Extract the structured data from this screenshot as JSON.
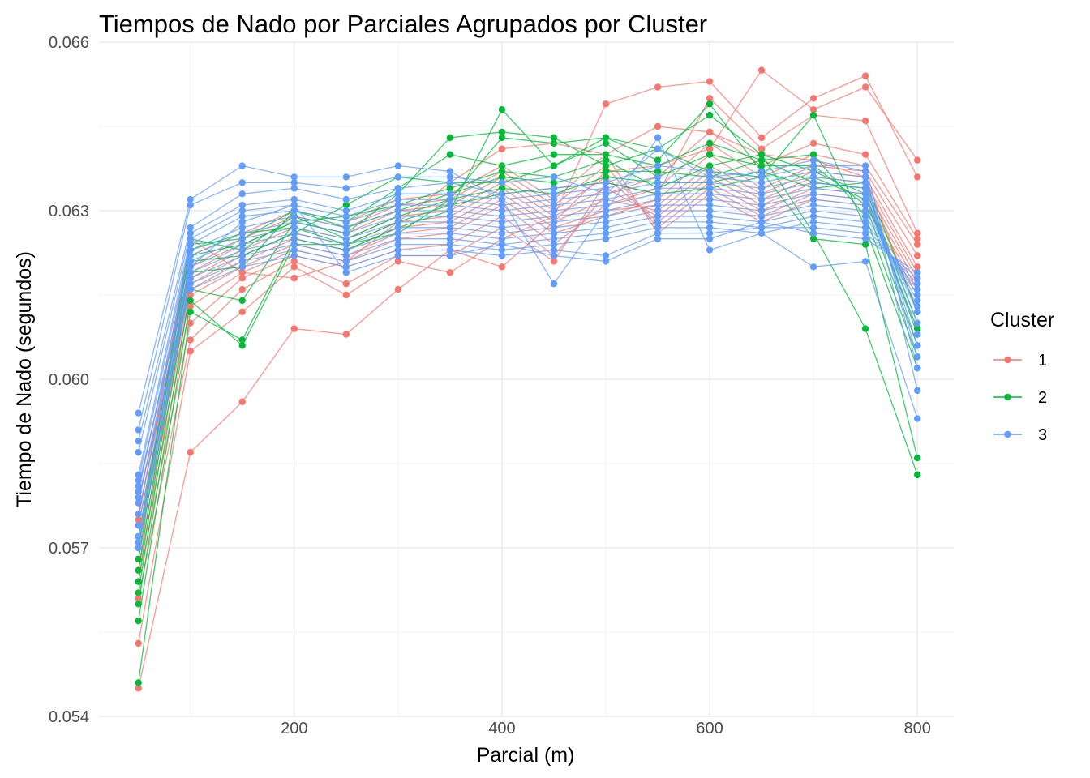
{
  "chart_data": {
    "type": "line",
    "title": "Tiempos de Nado por Parciales Agrupados por Cluster",
    "xlabel": "Parcial (m)",
    "ylabel": "Tiempo de Nado (segundos)",
    "x": [
      50,
      100,
      150,
      200,
      250,
      300,
      350,
      400,
      450,
      500,
      550,
      600,
      650,
      700,
      750,
      800
    ],
    "xlim": [
      12,
      835
    ],
    "ylim": [
      0.054,
      0.066
    ],
    "xticks": [
      200,
      400,
      600,
      800
    ],
    "xtick_labels": [
      "200",
      "400",
      "600",
      "800"
    ],
    "yticks": [
      0.054,
      0.057,
      0.06,
      0.063,
      0.066
    ],
    "ytick_labels": [
      "0.054",
      "0.057",
      "0.060",
      "0.063",
      "0.066"
    ],
    "grid": true,
    "legend": {
      "title": "Cluster",
      "position": "right"
    },
    "series_groups": [
      {
        "name": "1",
        "color": "#F8766D",
        "lines": [
          [
            0.0545,
            0.0587,
            0.0596,
            0.0609,
            0.0608,
            0.0616,
            0.0623,
            0.062,
            0.0628,
            0.0637,
            0.0638,
            0.0641,
            0.0655,
            0.0648,
            0.0652,
            0.0639
          ],
          [
            0.0553,
            0.0605,
            0.0612,
            0.062,
            0.0615,
            0.0621,
            0.0619,
            0.0625,
            0.0629,
            0.0649,
            0.0652,
            0.0653,
            0.0643,
            0.065,
            0.0654,
            0.0636
          ],
          [
            0.0561,
            0.0607,
            0.0616,
            0.0621,
            0.0617,
            0.0622,
            0.0622,
            0.0627,
            0.0621,
            0.0635,
            0.0633,
            0.065,
            0.0641,
            0.0647,
            0.0646,
            0.0626
          ],
          [
            0.0564,
            0.061,
            0.0618,
            0.0622,
            0.062,
            0.0623,
            0.0624,
            0.0629,
            0.0622,
            0.0633,
            0.0636,
            0.0644,
            0.0638,
            0.0642,
            0.064,
            0.0625
          ],
          [
            0.0566,
            0.0613,
            0.0619,
            0.0623,
            0.0621,
            0.0625,
            0.0626,
            0.0631,
            0.0624,
            0.0631,
            0.0634,
            0.0642,
            0.0636,
            0.064,
            0.0638,
            0.0624
          ],
          [
            0.0568,
            0.0615,
            0.062,
            0.0624,
            0.0622,
            0.0626,
            0.0627,
            0.0632,
            0.0626,
            0.0629,
            0.0632,
            0.064,
            0.0634,
            0.0638,
            0.0637,
            0.0622
          ],
          [
            0.057,
            0.0616,
            0.0621,
            0.0625,
            0.0623,
            0.0627,
            0.0628,
            0.0633,
            0.0627,
            0.063,
            0.0631,
            0.0638,
            0.0633,
            0.0637,
            0.0636,
            0.062
          ],
          [
            0.0572,
            0.0617,
            0.0622,
            0.0626,
            0.0624,
            0.0628,
            0.0629,
            0.0634,
            0.0628,
            0.0632,
            0.063,
            0.0637,
            0.0632,
            0.0636,
            0.0635,
            0.0619
          ],
          [
            0.0574,
            0.0618,
            0.0623,
            0.0627,
            0.0625,
            0.0629,
            0.063,
            0.0635,
            0.0629,
            0.0634,
            0.0629,
            0.0636,
            0.0631,
            0.0635,
            0.0634,
            0.0618
          ],
          [
            0.0576,
            0.0619,
            0.0624,
            0.0628,
            0.0626,
            0.063,
            0.0631,
            0.0636,
            0.063,
            0.0636,
            0.0628,
            0.0635,
            0.063,
            0.0634,
            0.0633,
            0.0617
          ],
          [
            0.0578,
            0.062,
            0.0625,
            0.0629,
            0.0627,
            0.0631,
            0.0632,
            0.0637,
            0.0631,
            0.0638,
            0.0627,
            0.0634,
            0.0629,
            0.0633,
            0.0632,
            0.0616
          ],
          [
            0.058,
            0.0622,
            0.0626,
            0.063,
            0.0628,
            0.0632,
            0.0633,
            0.0638,
            0.0632,
            0.064,
            0.0626,
            0.0633,
            0.0628,
            0.0632,
            0.0631,
            0.0615
          ],
          [
            0.0575,
            0.0625,
            0.0619,
            0.0618,
            0.0621,
            0.0628,
            0.0635,
            0.0641,
            0.0642,
            0.064,
            0.0645,
            0.0644,
            0.064,
            0.0639,
            0.0636,
            0.0612
          ]
        ]
      },
      {
        "name": "2",
        "color": "#00BA38",
        "lines": [
          [
            0.0546,
            0.0612,
            0.0607,
            0.0625,
            0.0623,
            0.0627,
            0.063,
            0.0648,
            0.0638,
            0.0643,
            0.0641,
            0.0647,
            0.064,
            0.0626,
            0.0609,
            0.0583
          ],
          [
            0.0557,
            0.0614,
            0.0606,
            0.0624,
            0.0624,
            0.0626,
            0.0632,
            0.0643,
            0.0642,
            0.0643,
            0.0639,
            0.0649,
            0.0637,
            0.0625,
            0.0624,
            0.0586
          ],
          [
            0.056,
            0.0616,
            0.0614,
            0.0628,
            0.0626,
            0.0633,
            0.0643,
            0.0644,
            0.0643,
            0.0638,
            0.0641,
            0.0637,
            0.0636,
            0.0647,
            0.0627,
            0.0602
          ],
          [
            0.0562,
            0.0619,
            0.062,
            0.063,
            0.0628,
            0.0634,
            0.064,
            0.0638,
            0.064,
            0.064,
            0.0638,
            0.0642,
            0.0639,
            0.064,
            0.0629,
            0.0604
          ],
          [
            0.0564,
            0.0621,
            0.0622,
            0.0626,
            0.0631,
            0.0636,
            0.0635,
            0.0635,
            0.0638,
            0.0642,
            0.0636,
            0.064,
            0.0638,
            0.0638,
            0.0631,
            0.0606
          ],
          [
            0.0566,
            0.0622,
            0.0624,
            0.0628,
            0.0629,
            0.0631,
            0.0634,
            0.0637,
            0.0636,
            0.0639,
            0.0634,
            0.0638,
            0.064,
            0.0637,
            0.0633,
            0.0608
          ],
          [
            0.0568,
            0.0624,
            0.0625,
            0.063,
            0.0627,
            0.063,
            0.0633,
            0.0636,
            0.0635,
            0.0637,
            0.0637,
            0.0636,
            0.0639,
            0.0635,
            0.0634,
            0.061
          ],
          [
            0.057,
            0.0625,
            0.0623,
            0.0629,
            0.0625,
            0.0629,
            0.0632,
            0.0634,
            0.0633,
            0.0636,
            0.0635,
            0.0635,
            0.0637,
            0.0634,
            0.0635,
            0.0612
          ],
          [
            0.0572,
            0.0623,
            0.0626,
            0.0627,
            0.0624,
            0.0628,
            0.0631,
            0.0633,
            0.0634,
            0.0635,
            0.0633,
            0.0634,
            0.0636,
            0.0636,
            0.0632,
            0.0609
          ]
        ]
      },
      {
        "name": "3",
        "color": "#619CFF",
        "lines": [
          [
            0.0594,
            0.0632,
            0.0638,
            0.0636,
            0.0636,
            0.0638,
            0.0637,
            0.0632,
            0.0617,
            0.063,
            0.0643,
            0.0623,
            0.0626,
            0.062,
            0.0621,
            0.0593
          ],
          [
            0.0591,
            0.0631,
            0.0635,
            0.0635,
            0.0634,
            0.0636,
            0.0636,
            0.0635,
            0.0636,
            0.0633,
            0.0641,
            0.0636,
            0.0637,
            0.0639,
            0.0637,
            0.0598
          ],
          [
            0.0589,
            0.0627,
            0.0633,
            0.0634,
            0.0632,
            0.0634,
            0.0635,
            0.0633,
            0.0634,
            0.0635,
            0.0638,
            0.0637,
            0.0636,
            0.0638,
            0.0638,
            0.0602
          ],
          [
            0.0587,
            0.0626,
            0.0631,
            0.0632,
            0.063,
            0.0633,
            0.0633,
            0.0632,
            0.0633,
            0.0634,
            0.0636,
            0.0636,
            0.0635,
            0.0637,
            0.0636,
            0.0604
          ],
          [
            0.0583,
            0.0625,
            0.063,
            0.0631,
            0.0629,
            0.0632,
            0.0632,
            0.0631,
            0.0632,
            0.0633,
            0.0635,
            0.0635,
            0.0634,
            0.0636,
            0.0635,
            0.0606
          ],
          [
            0.0582,
            0.0624,
            0.0629,
            0.063,
            0.0628,
            0.0631,
            0.0631,
            0.063,
            0.0631,
            0.0632,
            0.0634,
            0.0634,
            0.0633,
            0.0635,
            0.0634,
            0.0608
          ],
          [
            0.058,
            0.0623,
            0.0627,
            0.0629,
            0.0627,
            0.063,
            0.063,
            0.0629,
            0.063,
            0.0631,
            0.0633,
            0.0633,
            0.0632,
            0.0634,
            0.0633,
            0.061
          ],
          [
            0.0578,
            0.0622,
            0.0626,
            0.0628,
            0.0626,
            0.0629,
            0.0629,
            0.0628,
            0.0629,
            0.063,
            0.0632,
            0.0632,
            0.0631,
            0.0633,
            0.0632,
            0.0612
          ],
          [
            0.0576,
            0.0621,
            0.0625,
            0.0627,
            0.0625,
            0.0628,
            0.0628,
            0.0627,
            0.0628,
            0.0629,
            0.0631,
            0.0631,
            0.063,
            0.0632,
            0.0631,
            0.0613
          ],
          [
            0.0574,
            0.062,
            0.0624,
            0.0626,
            0.0624,
            0.0627,
            0.0627,
            0.0626,
            0.0627,
            0.0628,
            0.063,
            0.063,
            0.0629,
            0.0631,
            0.063,
            0.0614
          ],
          [
            0.0572,
            0.0619,
            0.0623,
            0.0625,
            0.0623,
            0.0626,
            0.0626,
            0.0625,
            0.0626,
            0.0627,
            0.0629,
            0.0629,
            0.0628,
            0.063,
            0.0629,
            0.0615
          ],
          [
            0.0571,
            0.0618,
            0.0622,
            0.0624,
            0.0622,
            0.0625,
            0.0625,
            0.0624,
            0.0625,
            0.0626,
            0.0628,
            0.0628,
            0.0627,
            0.0629,
            0.0628,
            0.0616
          ],
          [
            0.057,
            0.0617,
            0.0621,
            0.0623,
            0.0621,
            0.0624,
            0.0624,
            0.0623,
            0.0624,
            0.0625,
            0.0627,
            0.0627,
            0.0626,
            0.0628,
            0.0627,
            0.0617
          ],
          [
            0.0579,
            0.0616,
            0.062,
            0.0622,
            0.062,
            0.0623,
            0.0623,
            0.0622,
            0.0623,
            0.0622,
            0.0626,
            0.0626,
            0.0627,
            0.0627,
            0.0626,
            0.0618
          ],
          [
            0.0581,
            0.062,
            0.0628,
            0.0631,
            0.0619,
            0.0622,
            0.0622,
            0.0624,
            0.0622,
            0.0621,
            0.0625,
            0.0625,
            0.0628,
            0.0626,
            0.0625,
            0.0619
          ]
        ]
      }
    ]
  }
}
